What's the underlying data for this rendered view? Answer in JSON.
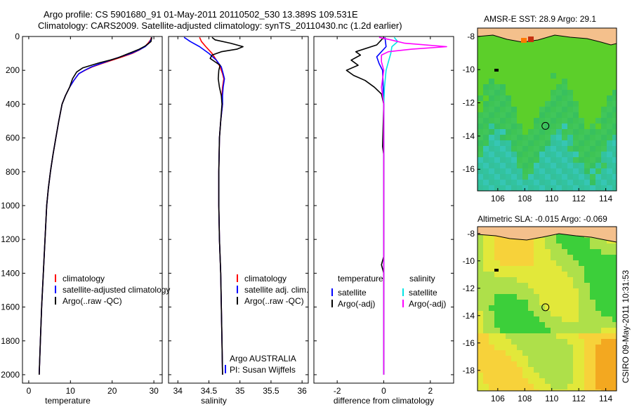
{
  "header": {
    "line1": "Argo profile: CS 5901680_91 01-May-2011 20110502_530 13.389S 109.531E",
    "line2": "Climatology: CARS2009. Satellite-adjusted climatology: synTS_20110430.nc (1.2d earlier)"
  },
  "footer": {
    "credit": "CSIRO 09-May-2011 10:31:53"
  },
  "colors": {
    "climatology": "#ff0000",
    "satellite": "#0000ff",
    "argo": "#000000",
    "sal_satellite": "#00e5e5",
    "sal_argo": "#ff00ff",
    "land": "#f4c08c"
  },
  "chart_data": [
    {
      "id": "temperature",
      "type": "line",
      "xlabel": "temperature",
      "ylabel": "",
      "xlim": [
        -1.5,
        32
      ],
      "ylim": [
        2050,
        0
      ],
      "xticks": [
        0,
        10,
        20,
        30
      ],
      "yticks": [
        0,
        200,
        400,
        600,
        800,
        1000,
        1200,
        1400,
        1600,
        1800,
        2000
      ],
      "legend": {
        "placement": "lower-right",
        "entries": [
          "climatology",
          "satellite-adjusted climatology",
          "Argo(..raw -QC)"
        ]
      },
      "series": [
        {
          "name": "climatology",
          "color": "#ff0000",
          "points": [
            [
              29.4,
              5
            ],
            [
              29.2,
              20
            ],
            [
              28.6,
              40
            ],
            [
              27.8,
              60
            ],
            [
              26.5,
              80
            ],
            [
              24.8,
              100
            ],
            [
              22.5,
              120
            ],
            [
              20.0,
              140
            ],
            [
              17.5,
              160
            ],
            [
              15.2,
              180
            ],
            [
              13.5,
              200
            ],
            [
              12.0,
              220
            ],
            [
              10.8,
              260
            ],
            [
              9.8,
              300
            ],
            [
              8.8,
              350
            ],
            [
              8.0,
              400
            ],
            [
              7.2,
              500
            ],
            [
              6.5,
              600
            ],
            [
              5.8,
              700
            ],
            [
              5.2,
              800
            ],
            [
              4.7,
              900
            ],
            [
              4.3,
              1000
            ],
            [
              3.9,
              1200
            ],
            [
              3.5,
              1400
            ],
            [
              3.1,
              1600
            ],
            [
              2.8,
              1800
            ],
            [
              2.5,
              2000
            ]
          ]
        },
        {
          "name": "satellite-adjusted climatology",
          "color": "#0000ff",
          "points": [
            [
              29.5,
              5
            ],
            [
              29.3,
              20
            ],
            [
              28.8,
              40
            ],
            [
              27.9,
              60
            ],
            [
              26.4,
              80
            ],
            [
              24.5,
              100
            ],
            [
              22.0,
              120
            ],
            [
              19.6,
              140
            ],
            [
              17.2,
              160
            ],
            [
              15.0,
              180
            ],
            [
              13.4,
              200
            ],
            [
              12.0,
              220
            ],
            [
              10.8,
              260
            ],
            [
              9.8,
              300
            ],
            [
              8.8,
              350
            ],
            [
              8.0,
              400
            ],
            [
              7.2,
              500
            ],
            [
              6.5,
              600
            ],
            [
              5.8,
              700
            ],
            [
              5.2,
              800
            ],
            [
              4.7,
              900
            ],
            [
              4.3,
              1000
            ],
            [
              3.9,
              1200
            ],
            [
              3.5,
              1400
            ],
            [
              3.1,
              1600
            ],
            [
              2.8,
              1800
            ],
            [
              2.5,
              2000
            ]
          ]
        },
        {
          "name": "Argo(..raw -QC)",
          "color": "#000000",
          "points": [
            [
              29.5,
              5
            ],
            [
              29.3,
              30
            ],
            [
              28.0,
              55
            ],
            [
              26.5,
              75
            ],
            [
              25.0,
              90
            ],
            [
              23.5,
              105
            ],
            [
              21.5,
              125
            ],
            [
              19.5,
              140
            ],
            [
              17.0,
              155
            ],
            [
              15.0,
              170
            ],
            [
              13.0,
              185
            ],
            [
              11.5,
              210
            ],
            [
              10.5,
              250
            ],
            [
              9.8,
              300
            ],
            [
              8.8,
              350
            ],
            [
              8.0,
              400
            ],
            [
              7.2,
              500
            ],
            [
              6.5,
              600
            ],
            [
              5.8,
              700
            ],
            [
              5.2,
              800
            ],
            [
              4.7,
              900
            ],
            [
              4.3,
              1000
            ],
            [
              3.9,
              1200
            ],
            [
              3.5,
              1400
            ],
            [
              3.1,
              1600
            ],
            [
              2.8,
              1800
            ],
            [
              2.5,
              2000
            ]
          ]
        }
      ]
    },
    {
      "id": "salinity",
      "type": "line",
      "xlabel": "salinity",
      "ylabel": "",
      "xlim": [
        33.85,
        36.1
      ],
      "ylim": [
        2050,
        0
      ],
      "xticks": [
        34,
        34.5,
        35,
        35.5,
        36
      ],
      "yticks": [
        0,
        200,
        400,
        600,
        800,
        1000,
        1200,
        1400,
        1600,
        1800,
        2000
      ],
      "legend": {
        "placement": "lower-right",
        "entries": [
          "climatology",
          "satellite adj. clim.",
          "Argo(..raw -QC)"
        ]
      },
      "annotations": [
        "Argo AUSTRALIA",
        "PI: Susan Wijffels"
      ],
      "series": [
        {
          "name": "climatology",
          "color": "#ff0000",
          "points": [
            [
              34.35,
              5
            ],
            [
              34.38,
              30
            ],
            [
              34.45,
              60
            ],
            [
              34.55,
              100
            ],
            [
              34.62,
              140
            ],
            [
              34.68,
              180
            ],
            [
              34.72,
              220
            ],
            [
              34.74,
              250
            ],
            [
              34.72,
              300
            ],
            [
              34.71,
              350
            ],
            [
              34.72,
              400
            ],
            [
              34.69,
              500
            ],
            [
              34.67,
              600
            ],
            [
              34.66,
              800
            ],
            [
              34.66,
              1000
            ],
            [
              34.67,
              1200
            ],
            [
              34.69,
              1400
            ],
            [
              34.7,
              1600
            ],
            [
              34.71,
              1800
            ],
            [
              34.72,
              2000
            ]
          ]
        },
        {
          "name": "satellite adj. clim.",
          "color": "#0000ff",
          "points": [
            [
              34.1,
              5
            ],
            [
              34.2,
              30
            ],
            [
              34.35,
              60
            ],
            [
              34.5,
              100
            ],
            [
              34.62,
              140
            ],
            [
              34.7,
              180
            ],
            [
              34.73,
              220
            ],
            [
              34.75,
              250
            ],
            [
              34.73,
              300
            ],
            [
              34.72,
              350
            ],
            [
              34.72,
              400
            ],
            [
              34.69,
              500
            ],
            [
              34.67,
              600
            ],
            [
              34.66,
              800
            ],
            [
              34.66,
              1000
            ],
            [
              34.67,
              1200
            ],
            [
              34.69,
              1400
            ],
            [
              34.7,
              1600
            ],
            [
              34.71,
              1800
            ],
            [
              34.72,
              2000
            ]
          ]
        },
        {
          "name": "Argo(..raw -QC)",
          "color": "#000000",
          "points": [
            [
              34.55,
              5
            ],
            [
              34.6,
              20
            ],
            [
              34.85,
              40
            ],
            [
              35.05,
              60
            ],
            [
              34.95,
              75
            ],
            [
              34.7,
              90
            ],
            [
              34.55,
              110
            ],
            [
              34.52,
              130
            ],
            [
              34.6,
              150
            ],
            [
              34.68,
              170
            ],
            [
              34.66,
              200
            ],
            [
              34.65,
              250
            ],
            [
              34.67,
              300
            ],
            [
              34.7,
              350
            ],
            [
              34.71,
              400
            ],
            [
              34.69,
              500
            ],
            [
              34.67,
              600
            ],
            [
              34.66,
              800
            ],
            [
              34.66,
              1000
            ],
            [
              34.67,
              1200
            ],
            [
              34.69,
              1400
            ],
            [
              34.7,
              1600
            ],
            [
              34.71,
              1800
            ],
            [
              34.72,
              2000
            ]
          ]
        }
      ]
    },
    {
      "id": "difference",
      "type": "line",
      "xlabel": "difference from climatology",
      "ylabel": "",
      "xlim": [
        -3,
        3
      ],
      "ylim": [
        2050,
        0
      ],
      "xticks": [
        -2,
        0,
        2
      ],
      "yticks": [
        0,
        200,
        400,
        600,
        800,
        1000,
        1200,
        1400,
        1600,
        1800,
        2000
      ],
      "legend": {
        "placement": "lower-right",
        "groups": [
          "temperature",
          "salinity"
        ],
        "entries": [
          "satellite",
          "Argo(-adj)",
          "satellite",
          "Argo(-adj)"
        ]
      },
      "series": [
        {
          "name": "satellite",
          "group": "temperature",
          "color": "#0000ff",
          "points": [
            [
              0.05,
              5
            ],
            [
              0.1,
              60
            ],
            [
              -0.3,
              120
            ],
            [
              -0.2,
              160
            ],
            [
              -0.05,
              200
            ],
            [
              0,
              400
            ],
            [
              0,
              2000
            ]
          ]
        },
        {
          "name": "Argo(-adj)",
          "group": "temperature",
          "color": "#000000",
          "points": [
            [
              0,
              5
            ],
            [
              -0.3,
              50
            ],
            [
              -1.2,
              90
            ],
            [
              -1.0,
              110
            ],
            [
              -1.4,
              140
            ],
            [
              -1.1,
              170
            ],
            [
              -1.6,
              200
            ],
            [
              -1.3,
              230
            ],
            [
              -0.8,
              260
            ],
            [
              -0.4,
              300
            ],
            [
              -0.1,
              340
            ],
            [
              0,
              400
            ],
            [
              -0.05,
              650
            ],
            [
              0,
              700
            ],
            [
              0,
              1300
            ],
            [
              -0.1,
              1350
            ],
            [
              0,
              1400
            ],
            [
              0,
              2000
            ]
          ]
        },
        {
          "name": "satellite",
          "group": "salinity",
          "color": "#00e5e5",
          "points": [
            [
              0.45,
              5
            ],
            [
              0.6,
              30
            ],
            [
              0.35,
              60
            ],
            [
              0.3,
              100
            ],
            [
              0.2,
              150
            ],
            [
              0.1,
              200
            ],
            [
              0.03,
              300
            ],
            [
              0,
              400
            ],
            [
              0,
              2000
            ]
          ]
        },
        {
          "name": "Argo(-adj)",
          "group": "salinity",
          "color": "#ff00ff",
          "points": [
            [
              -0.2,
              5
            ],
            [
              0.3,
              20
            ],
            [
              0.9,
              40
            ],
            [
              2.7,
              60
            ],
            [
              1.2,
              75
            ],
            [
              0.2,
              90
            ],
            [
              -0.1,
              110
            ],
            [
              -0.1,
              150
            ],
            [
              0,
              200
            ],
            [
              -0.1,
              300
            ],
            [
              0,
              400
            ],
            [
              0,
              2000
            ]
          ]
        }
      ]
    },
    {
      "id": "sst-map",
      "type": "heatmap",
      "title": "AMSR-E SST: 28.9 Argo: 29.1",
      "xlim": [
        104.5,
        114.8
      ],
      "ylim": [
        -17.3,
        -7.5
      ],
      "xticks": [
        106,
        108,
        110,
        112,
        114
      ],
      "yticks": [
        -8,
        -10,
        -12,
        -14,
        -16
      ],
      "marker": {
        "lon": 109.531,
        "lat": -13.389
      }
    },
    {
      "id": "sla-map",
      "type": "heatmap",
      "title": "Altimetric SLA: -0.015 Argo: -0.069",
      "xlim": [
        104.5,
        114.8
      ],
      "ylim": [
        -19.5,
        -7.5
      ],
      "xticks": [
        106,
        108,
        110,
        112,
        114
      ],
      "yticks": [
        -8,
        -10,
        -12,
        -14,
        -16,
        -18
      ],
      "marker": {
        "lon": 109.531,
        "lat": -13.389
      }
    }
  ]
}
